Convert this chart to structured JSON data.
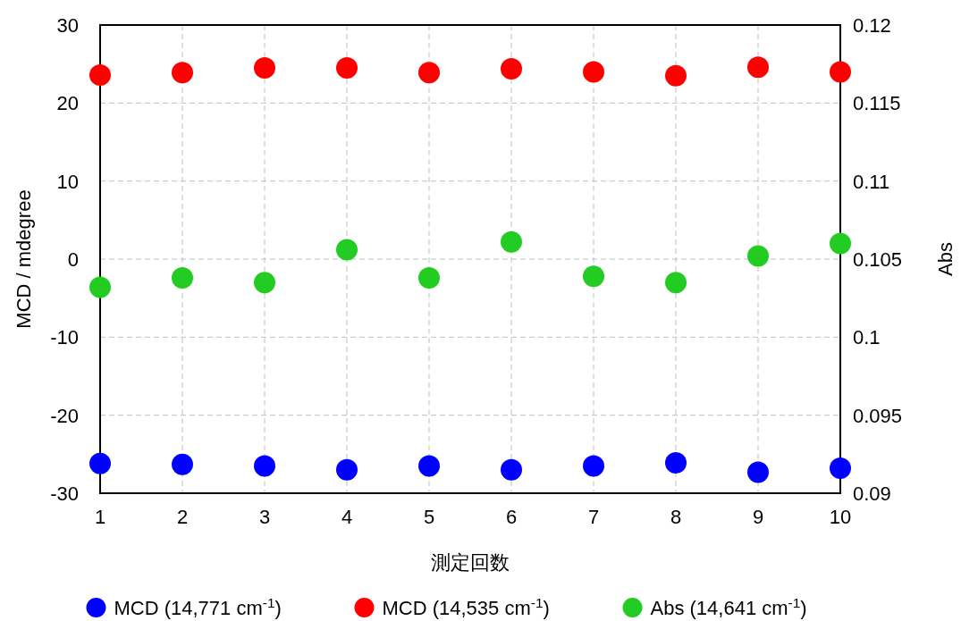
{
  "chart_data": {
    "type": "scatter",
    "xlabel": "測定回数",
    "ylabel": "MCD / mdegree",
    "y2label": "Abs",
    "x": [
      1,
      2,
      3,
      4,
      5,
      6,
      7,
      8,
      9,
      10
    ],
    "xlim": [
      1,
      10
    ],
    "xticks": [
      1,
      2,
      3,
      4,
      5,
      6,
      7,
      8,
      9,
      10
    ],
    "ylim": [
      -30,
      30
    ],
    "yticks": [
      -30,
      -20,
      -10,
      0,
      10,
      20,
      30
    ],
    "y2lim": [
      0.09,
      0.12
    ],
    "y2ticks": [
      0.09,
      0.095,
      0.1,
      0.105,
      0.11,
      0.115,
      0.12
    ],
    "grid": true,
    "legend": "bottom",
    "marker": "circle",
    "series": [
      {
        "name": "MCD (14,771 cm$^{-1}$)",
        "color": "#0000ff",
        "values": [
          -26.2,
          -26.3,
          -26.5,
          -27.0,
          -26.5,
          -27.0,
          -26.5,
          -26.1,
          -27.3,
          -26.8
        ]
      },
      {
        "name": "MCD (14,535 cm$^{-1}$)",
        "color": "#ff0000",
        "values": [
          23.6,
          23.9,
          24.5,
          24.5,
          23.9,
          24.4,
          24.0,
          23.5,
          24.6,
          24.0
        ]
      },
      {
        "name": "Abs (14,641 cm$^{-1}$)",
        "color": "#22cc22",
        "axis": "y2",
        "values": [
          0.1032,
          0.1038,
          0.1035,
          0.1056,
          0.1038,
          0.1061,
          0.1039,
          0.1035,
          0.1052,
          0.106
        ]
      }
    ]
  }
}
